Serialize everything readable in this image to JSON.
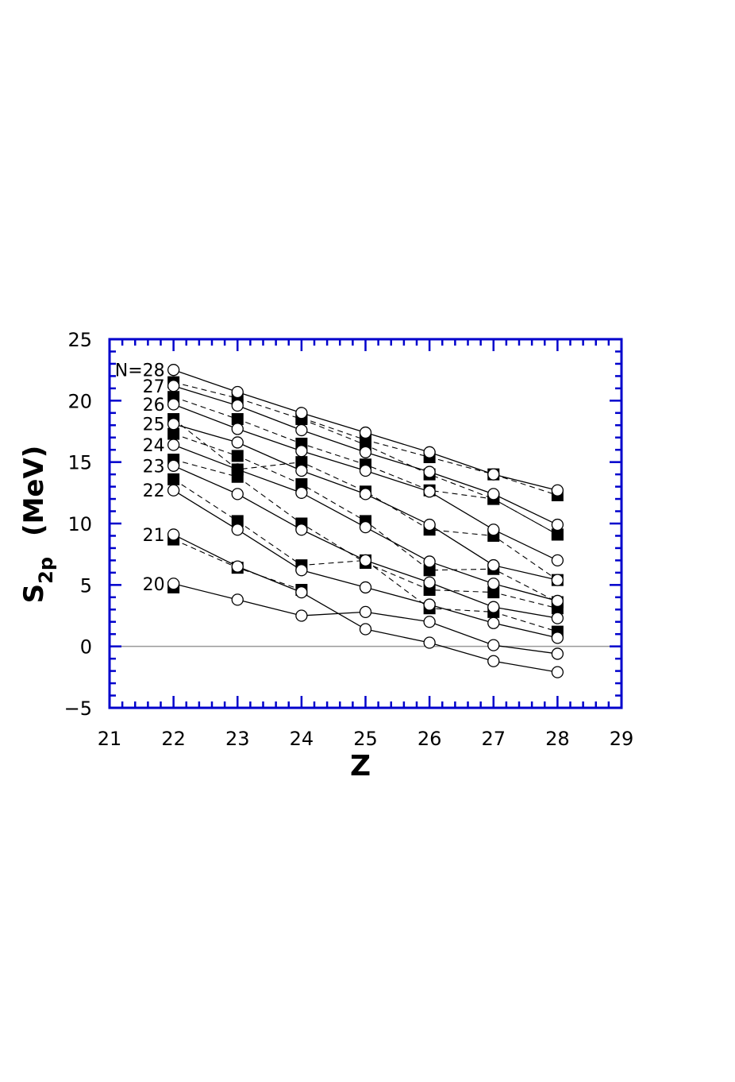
{
  "chart_data": {
    "type": "line",
    "xlabel": "Z",
    "ylabel": {
      "main": "S",
      "subscript": "2p",
      "unit": "(MeV)"
    },
    "xlim": [
      21,
      29
    ],
    "ylim": [
      -5,
      25
    ],
    "x_ticks": [
      21,
      22,
      23,
      24,
      25,
      26,
      27,
      28,
      29
    ],
    "y_ticks": [
      -5,
      0,
      5,
      10,
      15,
      20,
      25
    ],
    "x": [
      22,
      23,
      24,
      25,
      26,
      27,
      28
    ],
    "frame_color": "#0000cc",
    "zero_line_color": "#999999",
    "markers": {
      "open_circle": "solid line",
      "filled_square": "dashed line"
    },
    "series": [
      {
        "label": "20",
        "circles": [
          5.1,
          3.8,
          2.5,
          2.8,
          2.0,
          0.1,
          -0.6
        ],
        "squares": [
          4.8,
          null,
          null,
          null,
          null,
          null,
          null
        ]
      },
      {
        "label": "21",
        "circles": [
          9.1,
          6.5,
          4.4,
          1.4,
          0.3,
          -1.2,
          -2.1
        ],
        "squares": [
          8.7,
          6.4,
          4.6,
          null,
          null,
          null,
          null
        ]
      },
      {
        "label": "22",
        "circles": [
          12.7,
          9.5,
          6.2,
          4.8,
          3.4,
          1.9,
          0.7
        ],
        "squares": [
          13.6,
          10.2,
          6.6,
          7.0,
          3.1,
          2.8,
          1.2
        ]
      },
      {
        "label": "23",
        "circles": [
          14.7,
          12.4,
          9.5,
          7.0,
          5.2,
          3.2,
          2.3
        ],
        "squares": [
          15.2,
          13.8,
          10.0,
          6.8,
          4.6,
          4.4,
          3.1
        ]
      },
      {
        "label": "24",
        "circles": [
          16.4,
          14.4,
          12.5,
          9.7,
          6.9,
          5.1,
          3.7
        ],
        "squares": [
          17.3,
          15.5,
          13.2,
          10.2,
          6.2,
          6.3,
          3.6
        ]
      },
      {
        "label": "25",
        "circles": [
          18.1,
          16.6,
          14.3,
          12.4,
          9.9,
          6.6,
          5.4
        ],
        "squares": [
          18.5,
          14.4,
          15.0,
          12.6,
          9.5,
          9.0,
          5.4
        ]
      },
      {
        "label": "26",
        "circles": [
          19.7,
          17.7,
          15.9,
          14.3,
          12.6,
          9.5,
          7.0
        ],
        "squares": [
          20.3,
          18.5,
          16.5,
          14.8,
          12.7,
          12.0,
          9.1
        ]
      },
      {
        "label": "27",
        "circles": [
          21.2,
          19.6,
          17.6,
          15.8,
          14.2,
          12.4,
          9.9
        ],
        "squares": [
          21.5,
          20.2,
          18.5,
          16.4,
          14.0,
          12.0,
          9.1
        ]
      },
      {
        "label": "N=28",
        "circles": [
          22.5,
          20.7,
          19.0,
          17.4,
          15.8,
          14.0,
          12.7
        ],
        "squares": [
          null,
          null,
          18.6,
          16.8,
          15.4,
          14.0,
          12.3
        ]
      }
    ]
  }
}
